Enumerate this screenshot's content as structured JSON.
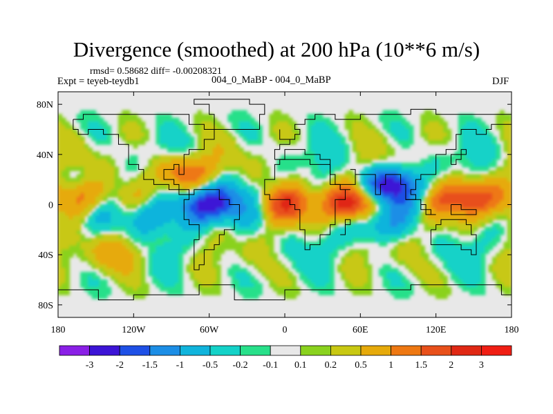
{
  "header": {
    "title": "Divergence (smoothed) at 200 hPa (10**6 m/s)",
    "stats": "rmsd= 0.58682 diff= -0.00208321",
    "experiment": "Expt = teyeb-teydb1",
    "comparison": "004_0_MaBP - 004_0_MaBP",
    "season": "DJF"
  },
  "chart_data": {
    "type": "heatmap",
    "title": "Divergence (smoothed) at 200 hPa (10**6 m/s)",
    "xlabel": "",
    "ylabel": "",
    "xlim": [
      -180,
      180
    ],
    "ylim": [
      -90,
      90
    ],
    "x_ticks": [
      {
        "value": -180,
        "label": "180"
      },
      {
        "value": -120,
        "label": "120W"
      },
      {
        "value": -60,
        "label": "60W"
      },
      {
        "value": 0,
        "label": "0"
      },
      {
        "value": 60,
        "label": "60E"
      },
      {
        "value": 120,
        "label": "120E"
      },
      {
        "value": 180,
        "label": "180"
      }
    ],
    "y_ticks": [
      {
        "value": 80,
        "label": "80N"
      },
      {
        "value": 40,
        "label": "40N"
      },
      {
        "value": 0,
        "label": "0"
      },
      {
        "value": -40,
        "label": "40S"
      },
      {
        "value": -80,
        "label": "80S"
      }
    ],
    "colorbar": {
      "labels": [
        "-3",
        "-2",
        "-1.5",
        "-1",
        "-0.5",
        "-0.2",
        "-0.1",
        "0.1",
        "0.2",
        "0.5",
        "1",
        "1.5",
        "2",
        "3"
      ],
      "colors": [
        "#8a1fe6",
        "#3c14d6",
        "#1e50e6",
        "#1c8ee6",
        "#10b4dc",
        "#14d2c8",
        "#28e08a",
        "#e8e8e8",
        "#8ad21e",
        "#c8c812",
        "#e6aa0a",
        "#ee7812",
        "#e8501a",
        "#e02814",
        "#f01e14"
      ]
    },
    "features": [
      {
        "label": "strong convergence over tropical South America",
        "lon": -62,
        "lat": 0,
        "value": -2.5
      },
      {
        "label": "strong convergence over northern Indian Ocean",
        "lon": 85,
        "lat": 15,
        "value": -2.2
      },
      {
        "label": "divergence maximum over East Africa",
        "lon": 55,
        "lat": 0,
        "value": 2.3
      },
      {
        "label": "divergence maximum over western Pacific",
        "lon": 145,
        "lat": 5,
        "value": 1.8
      },
      {
        "label": "divergence over central Pacific",
        "lon": -160,
        "lat": 5,
        "value": 1.6
      },
      {
        "label": "divergence over Gulf of Mexico / Central America",
        "lon": -80,
        "lat": 25,
        "value": 1.5
      },
      {
        "label": "divergence over equatorial Atlantic",
        "lon": 0,
        "lat": 0,
        "value": 1.4
      },
      {
        "label": "convergence over eastern Pacific",
        "lon": -110,
        "lat": -10,
        "value": -1.2
      },
      {
        "label": "convergence over Indian Ocean",
        "lon": 70,
        "lat": -15,
        "value": -1.1
      },
      {
        "label": "divergence over southern Pacific",
        "lon": -130,
        "lat": -40,
        "value": 0.7
      }
    ]
  }
}
